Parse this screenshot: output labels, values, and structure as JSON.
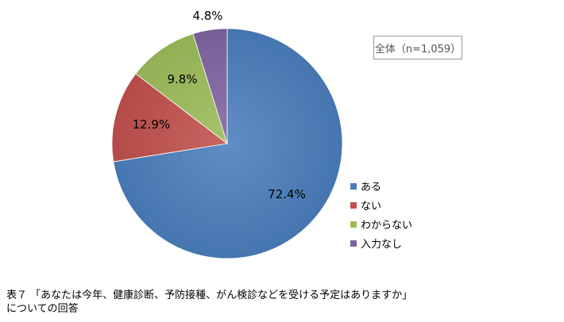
{
  "note_label": "全体（n=1,059）",
  "caption": {
    "line1": "表７ 「あなたは今年、健康診断、予防接種、がん検診などを受ける予定はありますか」",
    "line2": "についての回答"
  },
  "chart_data": {
    "type": "pie",
    "title": "",
    "categories": [
      "ある",
      "ない",
      "わからない",
      "入力なし"
    ],
    "values": [
      72.4,
      12.9,
      9.8,
      4.8
    ],
    "labels": [
      "72.4%",
      "12.9%",
      "9.8%",
      "4.8%"
    ],
    "colors": [
      "#4a7ebb",
      "#c0504d",
      "#9bbb59",
      "#8064a2"
    ],
    "start": "12 o'clock",
    "direction": "clockwise",
    "legend": "right"
  }
}
